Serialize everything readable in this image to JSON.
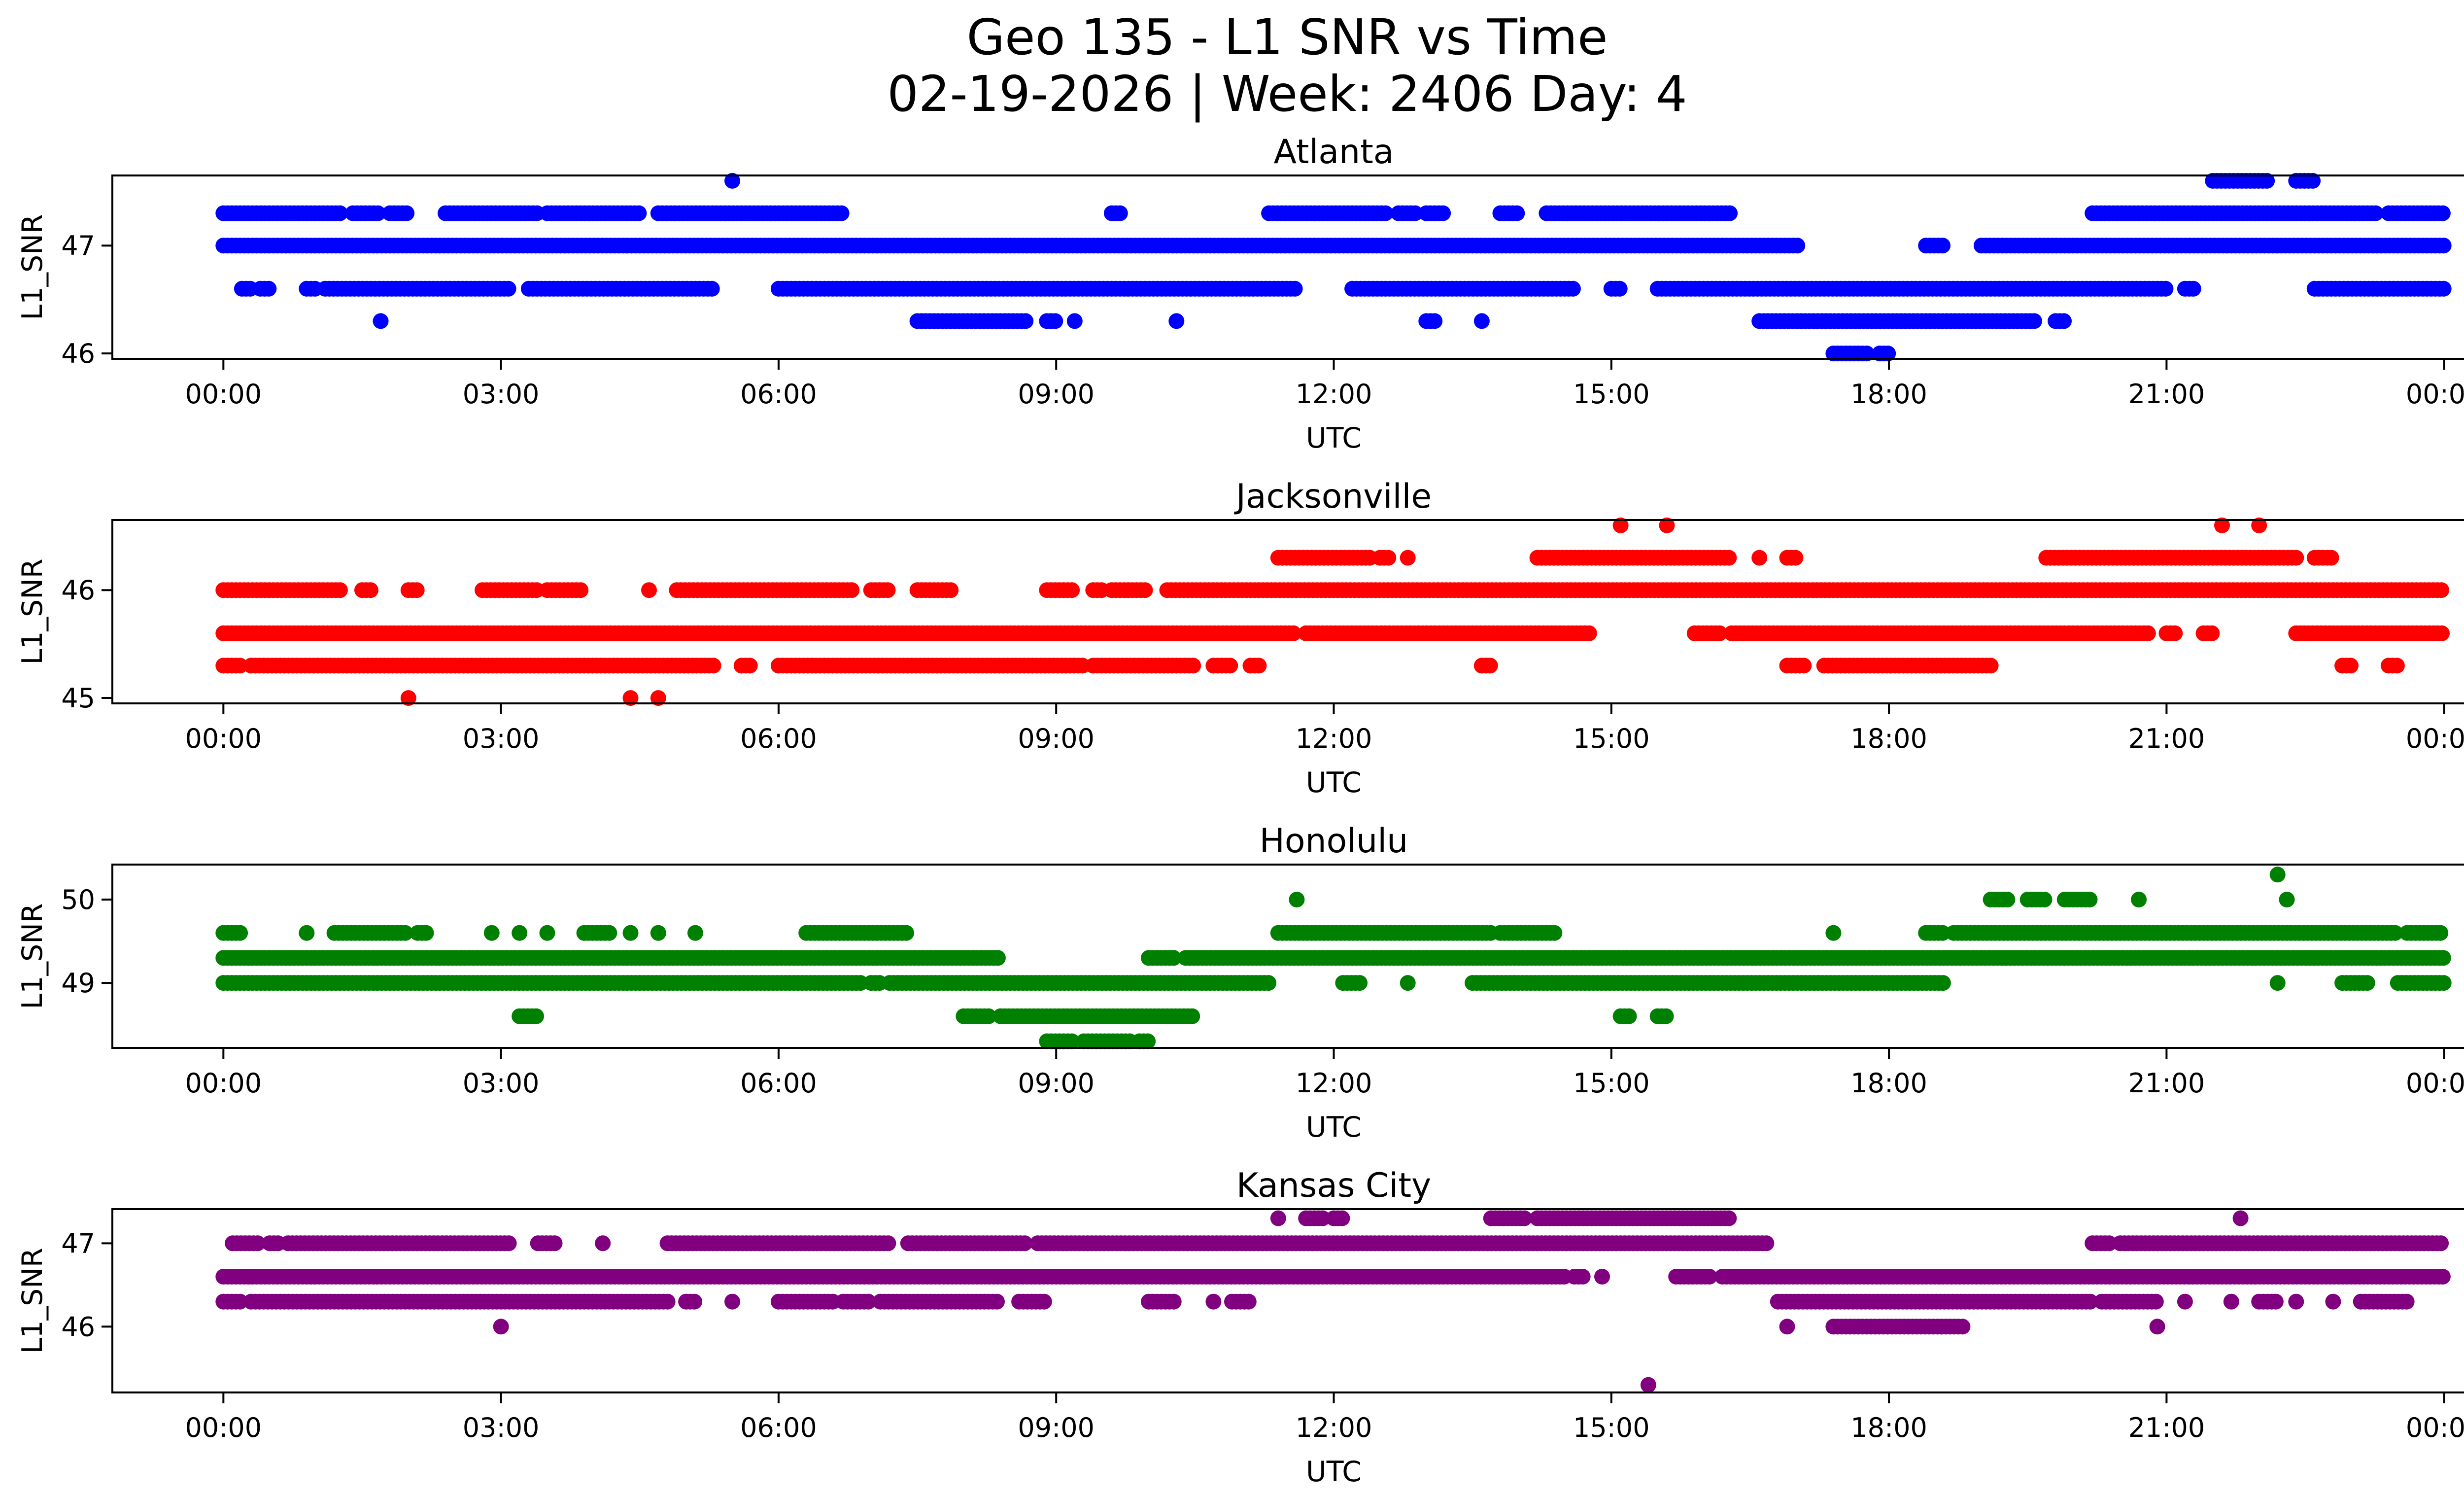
{
  "chart_data": {
    "type": "scatter",
    "title": "Geo 135 - L1 SNR vs Time",
    "subtitle": "02-19-2026 | Week: 2406 Day: 4",
    "x_tick_labels": [
      "00:00",
      "03:00",
      "06:00",
      "09:00",
      "12:00",
      "15:00",
      "18:00",
      "21:00",
      "00:00"
    ],
    "xlim_hours": [
      -1.2,
      25.2
    ],
    "panels": [
      {
        "name": "Atlanta",
        "color": "#0000ff",
        "xlabel": "UTC",
        "ylabel": "L1_SNR",
        "ylim": [
          45.95,
          47.65
        ],
        "yticks": [
          46,
          47
        ],
        "yticklabels": [
          "46",
          "47"
        ],
        "series": [
          {
            "y": 47.0,
            "segments": [
              [
                0.0,
                17.05
              ],
              [
                18.4,
                18.6
              ],
              [
                19.0,
                24.0
              ]
            ]
          },
          {
            "y": 47.3,
            "segments": [
              [
                0.0,
                1.3
              ],
              [
                1.4,
                1.7
              ],
              [
                1.8,
                2.0
              ],
              [
                2.4,
                3.4
              ],
              [
                3.5,
                4.5
              ],
              [
                4.7,
                6.7
              ],
              [
                9.6,
                9.7
              ],
              [
                11.3,
                12.6
              ],
              [
                12.7,
                12.9
              ],
              [
                13.0,
                13.2
              ],
              [
                13.8,
                14.0
              ],
              [
                14.3,
                16.3
              ],
              [
                20.2,
                23.3
              ],
              [
                23.4,
                24.0
              ]
            ]
          },
          {
            "y": 46.6,
            "segments": [
              [
                0.2,
                0.3
              ],
              [
                0.4,
                0.5
              ],
              [
                0.9,
                1.0
              ],
              [
                1.1,
                3.1
              ],
              [
                3.3,
                5.3
              ],
              [
                6.0,
                11.6
              ],
              [
                12.2,
                14.6
              ],
              [
                15.0,
                15.1
              ],
              [
                15.5,
                21.0
              ],
              [
                21.2,
                21.3
              ],
              [
                22.6,
                24.0
              ]
            ]
          },
          {
            "y": 46.3,
            "segments": [
              [
                1.7,
                1.7
              ],
              [
                7.5,
                8.7
              ],
              [
                8.9,
                9.0
              ],
              [
                9.2,
                9.2
              ],
              [
                10.3,
                10.3
              ],
              [
                13.0,
                13.1
              ],
              [
                13.6,
                13.6
              ],
              [
                16.6,
                19.6
              ],
              [
                19.8,
                19.9
              ]
            ]
          },
          {
            "y": 47.6,
            "segments": [
              [
                5.5,
                5.5
              ],
              [
                21.5,
                22.1
              ],
              [
                22.4,
                22.6
              ]
            ]
          },
          {
            "y": 46.0,
            "segments": [
              [
                17.4,
                17.8
              ],
              [
                17.9,
                18.0
              ]
            ]
          }
        ]
      },
      {
        "name": "Jacksonville",
        "color": "#ff0000",
        "xlabel": "UTC",
        "ylabel": "L1_SNR",
        "ylim": [
          44.95,
          46.65
        ],
        "yticks": [
          45,
          46
        ],
        "yticklabels": [
          "45",
          "46"
        ],
        "series": [
          {
            "y": 45.6,
            "segments": [
              [
                0.0,
                11.6
              ],
              [
                11.7,
                14.8
              ],
              [
                15.9,
                16.2
              ],
              [
                16.3,
                20.8
              ],
              [
                21.0,
                21.1
              ],
              [
                21.4,
                21.5
              ],
              [
                22.4,
                24.0
              ]
            ]
          },
          {
            "y": 46.0,
            "segments": [
              [
                0.0,
                1.3
              ],
              [
                1.5,
                1.6
              ],
              [
                2.0,
                2.1
              ],
              [
                2.8,
                3.4
              ],
              [
                3.5,
                3.9
              ],
              [
                4.6,
                4.6
              ],
              [
                4.9,
                6.8
              ],
              [
                7.0,
                7.2
              ],
              [
                7.5,
                7.9
              ],
              [
                8.9,
                9.2
              ],
              [
                9.4,
                9.5
              ],
              [
                9.6,
                10.0
              ],
              [
                10.2,
                24.0
              ]
            ]
          },
          {
            "y": 45.3,
            "segments": [
              [
                0.0,
                0.2
              ],
              [
                0.3,
                5.3
              ],
              [
                5.6,
                5.7
              ],
              [
                6.0,
                9.3
              ],
              [
                9.4,
                10.5
              ],
              [
                10.7,
                10.9
              ],
              [
                11.1,
                11.2
              ],
              [
                13.6,
                13.7
              ],
              [
                16.9,
                17.1
              ],
              [
                17.3,
                19.1
              ],
              [
                22.9,
                23.0
              ],
              [
                23.4,
                23.5
              ]
            ]
          },
          {
            "y": 46.3,
            "segments": [
              [
                11.4,
                12.4
              ],
              [
                12.5,
                12.6
              ],
              [
                12.8,
                12.8
              ],
              [
                14.2,
                16.3
              ],
              [
                16.6,
                16.6
              ],
              [
                16.9,
                17.0
              ],
              [
                19.7,
                22.4
              ],
              [
                22.6,
                22.8
              ]
            ]
          },
          {
            "y": 46.6,
            "segments": [
              [
                15.1,
                15.1
              ],
              [
                15.6,
                15.6
              ],
              [
                21.6,
                21.6
              ],
              [
                22.0,
                22.0
              ]
            ]
          },
          {
            "y": 45.0,
            "segments": [
              [
                2.0,
                2.0
              ],
              [
                4.4,
                4.4
              ],
              [
                4.7,
                4.7
              ]
            ]
          }
        ]
      },
      {
        "name": "Honolulu",
        "color": "#008000",
        "xlabel": "UTC",
        "ylabel": "L1_SNR",
        "ylim": [
          48.22,
          50.42
        ],
        "yticks": [
          49,
          50
        ],
        "yticklabels": [
          "49",
          "50"
        ],
        "series": [
          {
            "y": 49.3,
            "segments": [
              [
                0.0,
                8.4
              ],
              [
                10.0,
                10.3
              ],
              [
                10.4,
                24.0
              ]
            ]
          },
          {
            "y": 49.0,
            "segments": [
              [
                0.0,
                6.9
              ],
              [
                7.0,
                7.1
              ],
              [
                7.2,
                11.3
              ],
              [
                12.1,
                12.3
              ],
              [
                12.8,
                12.8
              ],
              [
                13.5,
                18.6
              ],
              [
                22.2,
                22.2
              ],
              [
                22.9,
                23.2
              ],
              [
                23.5,
                24.0
              ]
            ]
          },
          {
            "y": 49.6,
            "segments": [
              [
                0.0,
                0.2
              ],
              [
                0.9,
                0.9
              ],
              [
                1.2,
                2.0
              ],
              [
                2.1,
                2.2
              ],
              [
                2.9,
                2.9
              ],
              [
                3.2,
                3.2
              ],
              [
                3.5,
                3.5
              ],
              [
                3.9,
                4.2
              ],
              [
                4.4,
                4.4
              ],
              [
                4.7,
                4.7
              ],
              [
                5.1,
                5.1
              ],
              [
                6.3,
                7.4
              ],
              [
                11.4,
                13.7
              ],
              [
                13.8,
                14.4
              ],
              [
                17.4,
                17.4
              ],
              [
                18.4,
                18.6
              ],
              [
                18.7,
                23.5
              ],
              [
                23.6,
                24.0
              ]
            ]
          },
          {
            "y": 48.6,
            "segments": [
              [
                3.2,
                3.4
              ],
              [
                8.0,
                8.3
              ],
              [
                8.4,
                10.5
              ],
              [
                15.1,
                15.2
              ],
              [
                15.5,
                15.6
              ]
            ]
          },
          {
            "y": 48.3,
            "segments": [
              [
                8.9,
                9.2
              ],
              [
                9.3,
                9.8
              ],
              [
                9.9,
                10.0
              ]
            ]
          },
          {
            "y": 50.0,
            "segments": [
              [
                11.6,
                11.6
              ],
              [
                19.1,
                19.3
              ],
              [
                19.5,
                19.7
              ],
              [
                19.9,
                20.2
              ],
              [
                20.7,
                20.7
              ],
              [
                22.3,
                22.3
              ]
            ]
          },
          {
            "y": 50.3,
            "segments": [
              [
                22.2,
                22.2
              ]
            ]
          }
        ]
      },
      {
        "name": "Kansas City",
        "color": "#800080",
        "xlabel": "UTC",
        "ylabel": "L1_SNR",
        "ylim": [
          45.21,
          47.41
        ],
        "yticks": [
          46,
          47
        ],
        "yticklabels": [
          "46",
          "47"
        ],
        "series": [
          {
            "y": 46.6,
            "segments": [
              [
                0.0,
                14.5
              ],
              [
                14.6,
                14.7
              ],
              [
                14.9,
                14.9
              ],
              [
                15.7,
                16.1
              ],
              [
                16.2,
                24.0
              ]
            ]
          },
          {
            "y": 47.0,
            "segments": [
              [
                0.1,
                0.4
              ],
              [
                0.5,
                0.6
              ],
              [
                0.7,
                3.1
              ],
              [
                3.4,
                3.6
              ],
              [
                4.1,
                4.1
              ],
              [
                4.8,
                7.2
              ],
              [
                7.4,
                8.7
              ],
              [
                8.8,
                16.7
              ],
              [
                20.2,
                20.4
              ],
              [
                20.5,
                24.0
              ]
            ]
          },
          {
            "y": 46.3,
            "segments": [
              [
                0.0,
                0.2
              ],
              [
                0.3,
                4.8
              ],
              [
                5.0,
                5.1
              ],
              [
                5.5,
                5.5
              ],
              [
                6.0,
                6.6
              ],
              [
                6.7,
                7.0
              ],
              [
                7.1,
                8.4
              ],
              [
                8.6,
                8.9
              ],
              [
                10.0,
                10.3
              ],
              [
                10.7,
                10.7
              ],
              [
                10.9,
                11.1
              ],
              [
                16.8,
                20.2
              ],
              [
                20.3,
                20.9
              ],
              [
                21.2,
                21.2
              ],
              [
                21.7,
                21.7
              ],
              [
                22.0,
                22.2
              ],
              [
                22.4,
                22.4
              ],
              [
                22.8,
                22.8
              ],
              [
                23.1,
                23.6
              ]
            ]
          },
          {
            "y": 47.3,
            "segments": [
              [
                11.4,
                11.4
              ],
              [
                11.7,
                11.9
              ],
              [
                12.0,
                12.1
              ],
              [
                13.7,
                14.1
              ],
              [
                14.2,
                16.3
              ],
              [
                21.8,
                21.8
              ]
            ]
          },
          {
            "y": 46.0,
            "segments": [
              [
                3.0,
                3.0
              ],
              [
                16.9,
                16.9
              ],
              [
                17.4,
                18.8
              ],
              [
                20.9,
                20.9
              ]
            ]
          },
          {
            "y": 45.3,
            "segments": [
              [
                15.4,
                15.4
              ]
            ]
          }
        ]
      }
    ]
  }
}
